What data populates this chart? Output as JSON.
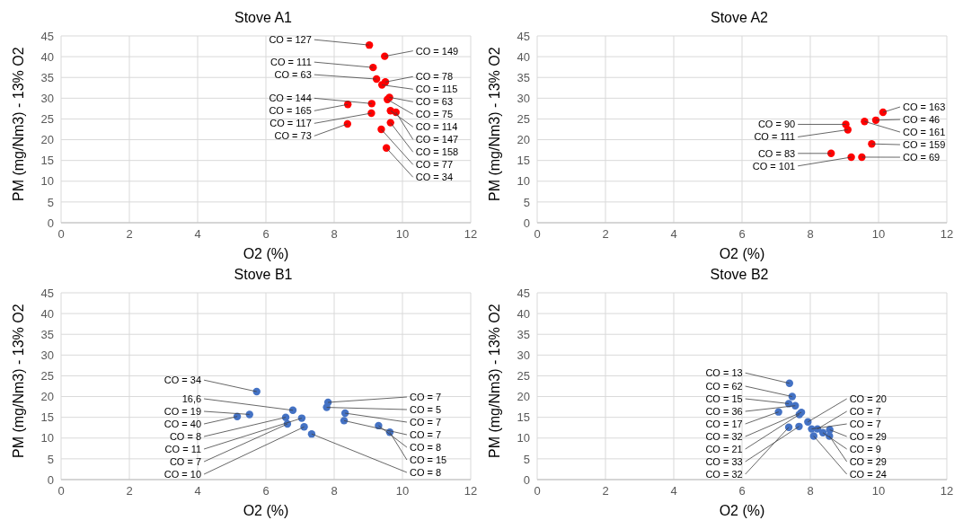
{
  "chart_data": [
    {
      "type": "scatter",
      "title": "Stove A1",
      "xlabel": "O2 (%)",
      "ylabel": "PM (mg/Nm3) - 13% O2",
      "marker": "circle",
      "grid": true,
      "xlim": [
        0,
        12
      ],
      "xticks": [
        0,
        2,
        4,
        6,
        8,
        10,
        12
      ],
      "ylim": [
        0,
        45
      ],
      "yticks": [
        0,
        5,
        10,
        15,
        20,
        25,
        30,
        35,
        40,
        45
      ],
      "x": [
        9.03,
        9.48,
        9.14,
        9.24,
        9.5,
        9.4,
        9.62,
        9.56,
        8.4,
        9.1,
        9.09,
        8.39,
        9.65,
        9.81,
        9.65,
        9.38,
        9.53
      ],
      "series": [
        {
          "color": "#ff0000",
          "values": [
            42.8,
            40.1,
            37.4,
            34.6,
            33.9,
            33.2,
            30.2,
            29.7,
            28.5,
            28.7,
            26.4,
            23.8,
            27.0,
            26.6,
            24.1,
            22.5,
            18.0
          ]
        }
      ],
      "annotations": [
        {
          "text": "CO = 127",
          "x": 9.03,
          "y": 42.8
        },
        {
          "text": "CO = 149",
          "x": 9.48,
          "y": 40.1
        },
        {
          "text": "CO = 111",
          "x": 9.14,
          "y": 37.4
        },
        {
          "text": "CO = 63",
          "x": 9.24,
          "y": 34.6
        },
        {
          "text": "CO = 78",
          "x": 9.5,
          "y": 33.9
        },
        {
          "text": "CO = 115",
          "x": 9.4,
          "y": 33.2
        },
        {
          "text": "CO = 63",
          "x": 9.62,
          "y": 30.2
        },
        {
          "text": "CO = 75",
          "x": 9.56,
          "y": 29.7
        },
        {
          "text": "CO = 165",
          "x": 8.4,
          "y": 28.5
        },
        {
          "text": "CO = 144",
          "x": 9.1,
          "y": 28.7
        },
        {
          "text": "CO = 117",
          "x": 9.09,
          "y": 26.4
        },
        {
          "text": "CO = 73",
          "x": 8.39,
          "y": 23.8
        },
        {
          "text": "CO = 114",
          "x": 9.65,
          "y": 27.0
        },
        {
          "text": "CO = 147",
          "x": 9.81,
          "y": 26.6
        },
        {
          "text": "CO = 158",
          "x": 9.65,
          "y": 24.1
        },
        {
          "text": "CO = 77",
          "x": 9.38,
          "y": 22.5
        },
        {
          "text": "CO = 34",
          "x": 9.53,
          "y": 18.0
        }
      ]
    },
    {
      "type": "scatter",
      "title": "Stove A2",
      "xlabel": "O2 (%)",
      "ylabel": "PM (mg/Nm3) - 13% O2",
      "marker": "circle",
      "grid": true,
      "xlim": [
        0,
        12
      ],
      "xticks": [
        0,
        2,
        4,
        6,
        8,
        10,
        12
      ],
      "ylim": [
        0,
        45
      ],
      "yticks": [
        0,
        5,
        10,
        15,
        20,
        25,
        30,
        35,
        40,
        45
      ],
      "x": [
        10.13,
        9.92,
        9.59,
        9.04,
        9.1,
        9.8,
        8.61,
        9.2,
        9.51
      ],
      "series": [
        {
          "color": "#ff0000",
          "values": [
            26.6,
            24.7,
            24.4,
            23.7,
            22.4,
            19.0,
            16.7,
            15.8,
            15.8
          ]
        }
      ],
      "annotations": [
        {
          "text": "CO = 163",
          "x": 10.13,
          "y": 26.6
        },
        {
          "text": "CO = 46",
          "x": 9.92,
          "y": 24.7
        },
        {
          "text": "CO = 161",
          "x": 9.59,
          "y": 24.4
        },
        {
          "text": "CO = 90",
          "x": 9.04,
          "y": 23.7
        },
        {
          "text": "CO = 111",
          "x": 9.1,
          "y": 22.4
        },
        {
          "text": "CO = 159",
          "x": 9.8,
          "y": 19.0
        },
        {
          "text": "CO = 83",
          "x": 8.61,
          "y": 16.7
        },
        {
          "text": "CO = 101",
          "x": 9.2,
          "y": 15.8
        },
        {
          "text": "CO = 69",
          "x": 9.51,
          "y": 15.8
        }
      ]
    },
    {
      "type": "scatter",
      "title": "Stove B1",
      "xlabel": "O2 (%)",
      "ylabel": "PM (mg/Nm3) - 13% O2",
      "marker": "circle",
      "grid": true,
      "xlim": [
        0,
        12
      ],
      "xticks": [
        0,
        2,
        4,
        6,
        8,
        10,
        12
      ],
      "ylim": [
        0,
        45
      ],
      "yticks": [
        0,
        5,
        10,
        15,
        20,
        25,
        30,
        35,
        40,
        45
      ],
      "x": [
        5.73,
        5.52,
        5.16,
        6.79,
        7.05,
        6.58,
        6.63,
        7.12,
        7.34,
        7.82,
        7.78,
        8.32,
        8.29,
        9.3,
        9.63
      ],
      "series": [
        {
          "color": "#4472c4",
          "values": [
            21.2,
            15.7,
            15.2,
            16.7,
            14.8,
            15.0,
            13.4,
            12.7,
            11.0,
            18.6,
            17.4,
            16.0,
            14.2,
            13.0,
            11.4
          ]
        }
      ],
      "annotations": [
        {
          "text": "CO = 34",
          "x": 5.73,
          "y": 21.2
        },
        {
          "text": "CO = 19",
          "x": 5.52,
          "y": 15.7
        },
        {
          "text": "CO = 40",
          "x": 5.16,
          "y": 15.2
        },
        {
          "text": "16,6",
          "x": 6.79,
          "y": 16.7
        },
        {
          "text": "CO = 11",
          "x": 7.05,
          "y": 14.8
        },
        {
          "text": "CO = 8",
          "x": 6.58,
          "y": 15.0
        },
        {
          "text": "CO = 7",
          "x": 6.63,
          "y": 13.4
        },
        {
          "text": "CO = 10",
          "x": 7.12,
          "y": 12.7
        },
        {
          "text": "CO = 8",
          "x": 7.34,
          "y": 11.0
        },
        {
          "text": "CO = 7",
          "x": 7.82,
          "y": 18.6
        },
        {
          "text": "CO = 5",
          "x": 7.78,
          "y": 17.4
        },
        {
          "text": "CO = 7",
          "x": 8.32,
          "y": 16.0
        },
        {
          "text": "CO = 7",
          "x": 8.29,
          "y": 14.2
        },
        {
          "text": "CO = 8",
          "x": 9.3,
          "y": 13.0
        },
        {
          "text": "CO = 15",
          "x": 9.63,
          "y": 11.4
        }
      ]
    },
    {
      "type": "scatter",
      "title": "Stove B2",
      "xlabel": "O2 (%)",
      "ylabel": "PM (mg/Nm3) - 13% O2",
      "marker": "circle",
      "grid": true,
      "xlim": [
        0,
        12
      ],
      "xticks": [
        0,
        2,
        4,
        6,
        8,
        10,
        12
      ],
      "ylim": [
        0,
        45
      ],
      "yticks": [
        0,
        5,
        10,
        15,
        20,
        25,
        30,
        35,
        40,
        45
      ],
      "x": [
        7.39,
        7.47,
        7.37,
        7.56,
        7.07,
        7.74,
        7.68,
        7.93,
        7.37,
        7.67,
        8.21,
        8.57,
        8.56,
        8.37,
        8.04,
        8.1
      ],
      "series": [
        {
          "color": "#4472c4",
          "values": [
            23.2,
            20.0,
            18.3,
            17.8,
            16.3,
            16.2,
            15.7,
            13.9,
            12.6,
            12.8,
            12.2,
            12.0,
            10.5,
            11.3,
            12.2,
            10.5
          ]
        }
      ],
      "annotations": [
        {
          "text": "CO = 13",
          "x": 7.39,
          "y": 23.2
        },
        {
          "text": "CO = 62",
          "x": 7.47,
          "y": 20.0
        },
        {
          "text": "CO = 15",
          "x": 7.37,
          "y": 18.3
        },
        {
          "text": "CO = 36",
          "x": 7.56,
          "y": 17.8
        },
        {
          "text": "CO = 17",
          "x": 7.07,
          "y": 16.3
        },
        {
          "text": "CO = 32",
          "x": 7.74,
          "y": 16.2
        },
        {
          "text": "CO = 21",
          "x": 7.68,
          "y": 15.7
        },
        {
          "text": "CO = 20",
          "x": 7.93,
          "y": 13.9
        },
        {
          "text": "CO = 32",
          "x": 7.37,
          "y": 12.6
        },
        {
          "text": "CO = 33",
          "x": 7.67,
          "y": 12.8
        },
        {
          "text": "CO = 7",
          "x": 8.21,
          "y": 12.2
        },
        {
          "text": "CO = 29",
          "x": 8.57,
          "y": 12.0
        },
        {
          "text": "CO = 29",
          "x": 8.56,
          "y": 10.5
        },
        {
          "text": "CO = 9",
          "x": 8.37,
          "y": 11.3
        },
        {
          "text": "CO = 7",
          "x": 8.04,
          "y": 12.2
        },
        {
          "text": "CO = 24",
          "x": 8.1,
          "y": 10.5
        }
      ]
    }
  ]
}
